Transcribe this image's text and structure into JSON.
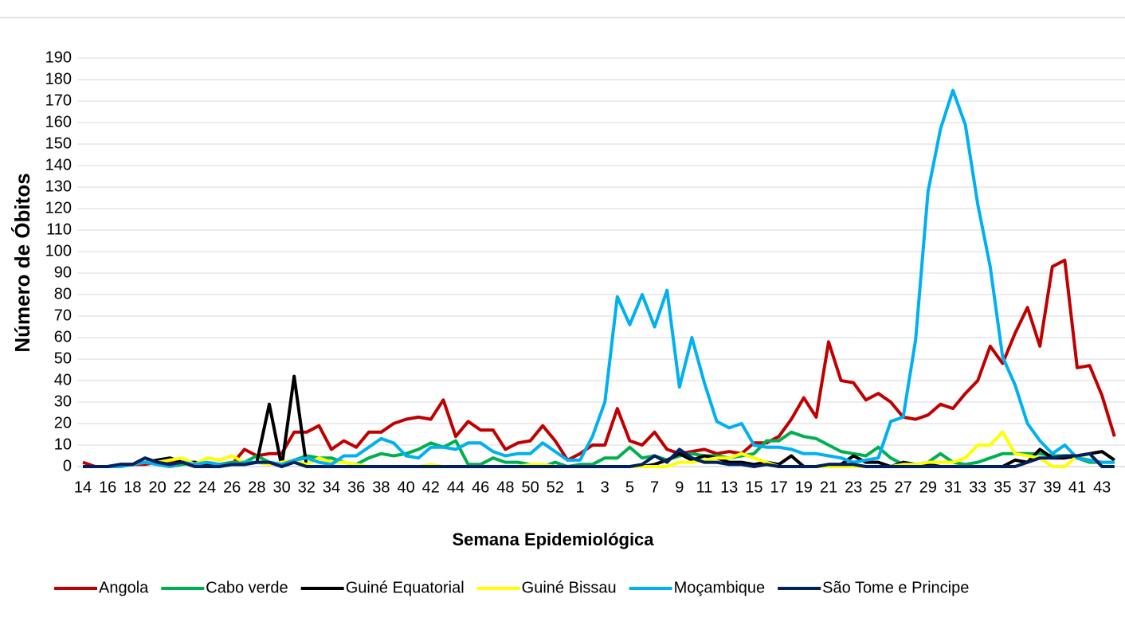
{
  "chart_data": {
    "type": "line",
    "x_label": "Semana Epidemiológica",
    "y_label": "Número de Óbitos",
    "categories": [
      14,
      null,
      16,
      null,
      18,
      null,
      20,
      null,
      22,
      null,
      24,
      null,
      26,
      null,
      28,
      null,
      30,
      null,
      32,
      null,
      34,
      null,
      36,
      null,
      38,
      null,
      40,
      null,
      42,
      null,
      44,
      null,
      46,
      null,
      48,
      null,
      50,
      null,
      52,
      null,
      1,
      null,
      3,
      null,
      5,
      null,
      7,
      null,
      9,
      null,
      11,
      null,
      13,
      null,
      15,
      null,
      17,
      null,
      19,
      null,
      21,
      null,
      23,
      null,
      25,
      null,
      27,
      null,
      29,
      null,
      31,
      null,
      33,
      null,
      35,
      null,
      37,
      null,
      39,
      null,
      41,
      null,
      43,
      null
    ],
    "ylim": [
      0,
      190
    ],
    "yticks": [
      0,
      10,
      20,
      30,
      40,
      50,
      60,
      70,
      80,
      90,
      100,
      110,
      120,
      130,
      140,
      150,
      160,
      170,
      180,
      190
    ],
    "grid": true,
    "legend": "bottom",
    "series": [
      {
        "name": "Angola",
        "color": "#c00000",
        "values": [
          2,
          0,
          0,
          0,
          1,
          1,
          2,
          2,
          2,
          1,
          0,
          1,
          1,
          8,
          5,
          6,
          6,
          16,
          16,
          19,
          8,
          12,
          9,
          16,
          16,
          20,
          22,
          23,
          22,
          31,
          14,
          21,
          17,
          17,
          8,
          11,
          12,
          19,
          12,
          3,
          6,
          10,
          10,
          27,
          12,
          10,
          16,
          8,
          6,
          7,
          8,
          6,
          7,
          6,
          11,
          11,
          14,
          22,
          32,
          23,
          58,
          40,
          39,
          31,
          34,
          30,
          23,
          22,
          24,
          29,
          27,
          34,
          40,
          56,
          48,
          62,
          74,
          56,
          93,
          96,
          46,
          47,
          33,
          14
        ]
      },
      {
        "name": "Cabo verde",
        "color": "#00b050",
        "values": [
          0,
          0,
          0,
          0,
          1,
          2,
          1,
          0,
          1,
          2,
          1,
          1,
          2,
          2,
          5,
          2,
          1,
          3,
          5,
          4,
          4,
          2,
          1,
          4,
          6,
          5,
          6,
          8,
          11,
          9,
          12,
          1,
          1,
          4,
          2,
          2,
          1,
          0,
          2,
          0,
          1,
          1,
          4,
          4,
          9,
          4,
          5,
          3,
          5,
          6,
          5,
          5,
          4,
          5,
          6,
          12,
          12,
          16,
          14,
          13,
          10,
          7,
          6,
          5,
          9,
          4,
          1,
          1,
          2,
          6,
          2,
          1,
          2,
          4,
          6,
          6,
          6,
          6,
          5,
          5,
          4,
          2,
          2,
          2
        ]
      },
      {
        "name": "Guiné Equatorial",
        "color": "#000000",
        "values": [
          0,
          0,
          0,
          1,
          1,
          2,
          3,
          4,
          2,
          2,
          1,
          1,
          1,
          1,
          2,
          29,
          0,
          42,
          0,
          0,
          0,
          0,
          0,
          0,
          0,
          0,
          0,
          0,
          0,
          0,
          0,
          0,
          0,
          0,
          0,
          0,
          0,
          0,
          0,
          0,
          0,
          0,
          0,
          0,
          0,
          0,
          1,
          3,
          6,
          3,
          5,
          4,
          2,
          2,
          1,
          2,
          1,
          5,
          0,
          0,
          1,
          1,
          5,
          2,
          2,
          0,
          2,
          1,
          1,
          0,
          0,
          0,
          0,
          0,
          0,
          3,
          2,
          8,
          4,
          4,
          5,
          6,
          7,
          3
        ]
      },
      {
        "name": "Guiné Bissau",
        "color": "#ffff00",
        "values": [
          0,
          0,
          0,
          0,
          1,
          2,
          2,
          3,
          4,
          1,
          4,
          3,
          5,
          2,
          2,
          1,
          2,
          3,
          1,
          4,
          2,
          2,
          1,
          0,
          0,
          0,
          0,
          0,
          1,
          0,
          0,
          0,
          0,
          0,
          0,
          0,
          1,
          1,
          0,
          0,
          0,
          0,
          0,
          0,
          0,
          0,
          0,
          0,
          2,
          2,
          3,
          4,
          4,
          6,
          4,
          2,
          0,
          0,
          0,
          0,
          0,
          0,
          0,
          0,
          0,
          0,
          1,
          1,
          2,
          2,
          2,
          4,
          10,
          10,
          16,
          6,
          5,
          4,
          0,
          0,
          5,
          3,
          2,
          2
        ]
      },
      {
        "name": "Moçambique",
        "color": "#00b0f0",
        "values": [
          0,
          0,
          0,
          0,
          1,
          2,
          1,
          0,
          2,
          1,
          2,
          1,
          1,
          2,
          2,
          2,
          1,
          3,
          4,
          2,
          1,
          5,
          5,
          9,
          13,
          11,
          5,
          4,
          9,
          9,
          8,
          11,
          11,
          7,
          5,
          6,
          6,
          11,
          7,
          3,
          3,
          14,
          30,
          79,
          66,
          80,
          65,
          82,
          37,
          60,
          39,
          21,
          18,
          20,
          10,
          9,
          9,
          8,
          6,
          6,
          5,
          4,
          2,
          3,
          4,
          21,
          23,
          59,
          128,
          157,
          175,
          159,
          122,
          93,
          51,
          38,
          20,
          12,
          6,
          10,
          4,
          3,
          2,
          2
        ]
      },
      {
        "name": "São Tome e Principe",
        "color": "#002060",
        "values": [
          0,
          0,
          0,
          1,
          1,
          4,
          2,
          1,
          2,
          0,
          0,
          0,
          1,
          1,
          2,
          2,
          0,
          2,
          0,
          0,
          0,
          0,
          0,
          0,
          0,
          0,
          0,
          0,
          0,
          0,
          0,
          0,
          0,
          0,
          0,
          0,
          0,
          0,
          0,
          0,
          0,
          0,
          0,
          0,
          0,
          1,
          5,
          2,
          8,
          4,
          2,
          2,
          1,
          1,
          0,
          1,
          0,
          0,
          0,
          0,
          1,
          1,
          1,
          0,
          0,
          0,
          0,
          0,
          0,
          0,
          0,
          0,
          0,
          0,
          0,
          0,
          2,
          4,
          4,
          5,
          5,
          6,
          0,
          0
        ]
      }
    ]
  }
}
